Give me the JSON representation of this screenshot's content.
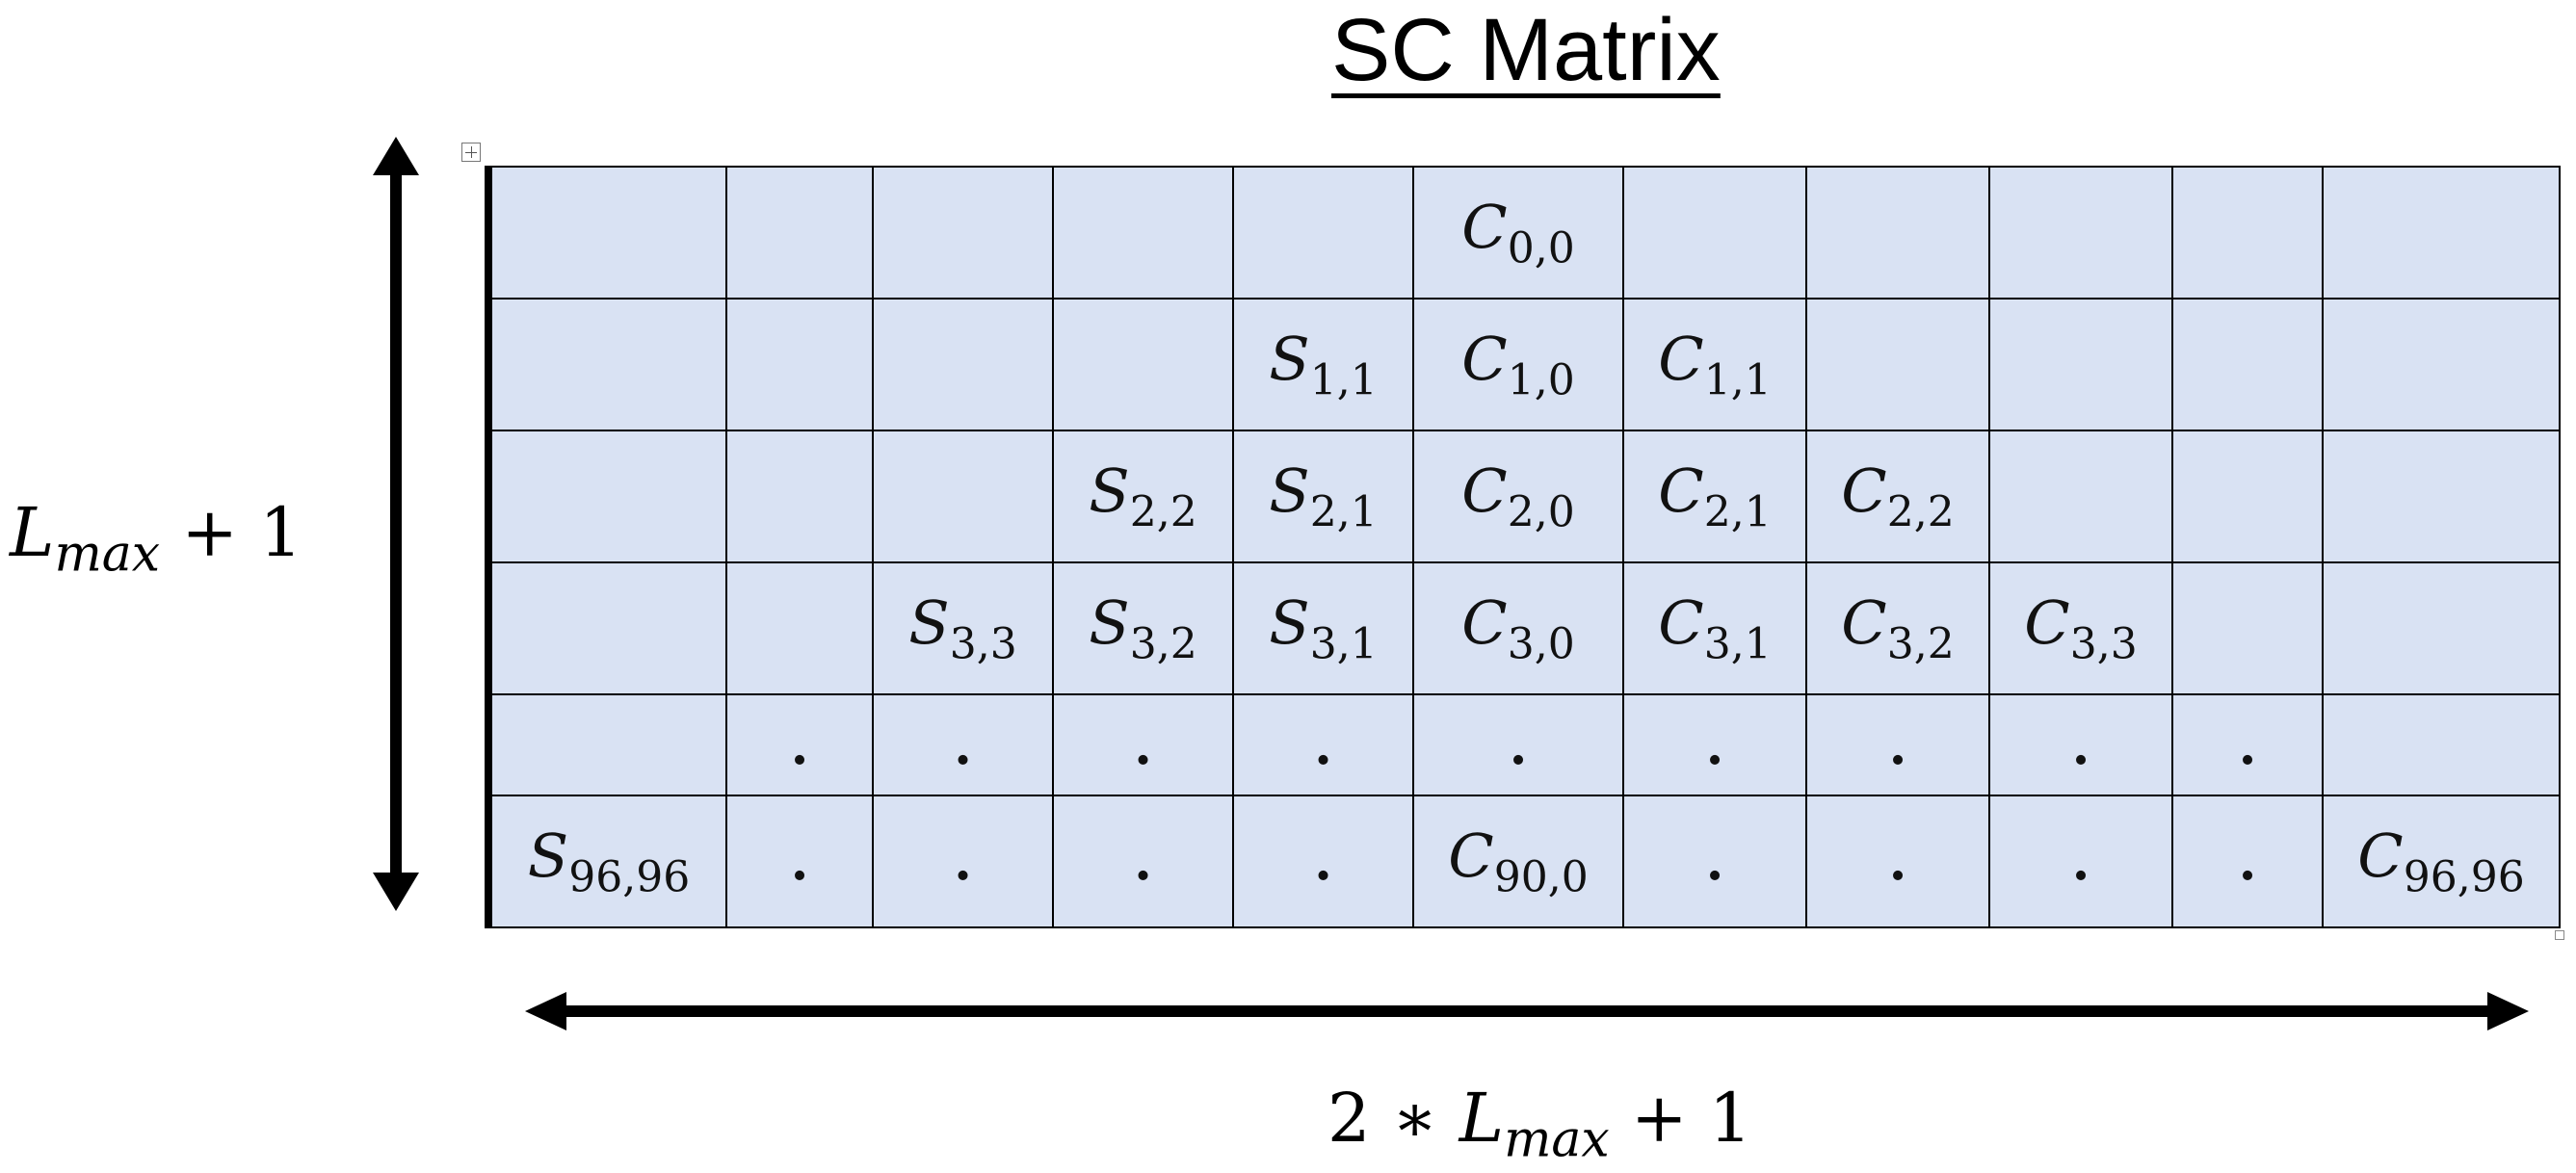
{
  "title": "SC Matrix",
  "vertical_label": {
    "base": "L",
    "sub": "max",
    "suffix": "+ 1"
  },
  "horizontal_label": {
    "prefix": "2 ∗",
    "base": "L",
    "sub": "max",
    "suffix": "+ 1"
  },
  "icons": {
    "move_handle": "table-move-handle-icon",
    "resize_handle": "table-resize-handle-icon",
    "vertical_arrow": "double-arrow-vertical-icon",
    "horizontal_arrow": "double-arrow-horizontal-icon"
  },
  "colors": {
    "cell_fill": "#d9e2f3",
    "border": "#000000"
  },
  "matrix": {
    "rows": [
      [
        {
          "b": "",
          "s": ""
        },
        {
          "b": "",
          "s": ""
        },
        {
          "b": "",
          "s": ""
        },
        {
          "b": "",
          "s": ""
        },
        {
          "b": "",
          "s": ""
        },
        {
          "b": "C",
          "s": "0,0"
        },
        {
          "b": "",
          "s": ""
        },
        {
          "b": "",
          "s": ""
        },
        {
          "b": "",
          "s": ""
        },
        {
          "b": "",
          "s": ""
        },
        {
          "b": "",
          "s": ""
        }
      ],
      [
        {
          "b": "",
          "s": ""
        },
        {
          "b": "",
          "s": ""
        },
        {
          "b": "",
          "s": ""
        },
        {
          "b": "",
          "s": ""
        },
        {
          "b": "S",
          "s": "1,1"
        },
        {
          "b": "C",
          "s": "1,0"
        },
        {
          "b": "C",
          "s": "1,1"
        },
        {
          "b": "",
          "s": ""
        },
        {
          "b": "",
          "s": ""
        },
        {
          "b": "",
          "s": ""
        },
        {
          "b": "",
          "s": ""
        }
      ],
      [
        {
          "b": "",
          "s": ""
        },
        {
          "b": "",
          "s": ""
        },
        {
          "b": "",
          "s": ""
        },
        {
          "b": "S",
          "s": "2,2"
        },
        {
          "b": "S",
          "s": "2,1"
        },
        {
          "b": "C",
          "s": "2,0"
        },
        {
          "b": "C",
          "s": "2,1"
        },
        {
          "b": "C",
          "s": "2,2"
        },
        {
          "b": "",
          "s": ""
        },
        {
          "b": "",
          "s": ""
        },
        {
          "b": "",
          "s": ""
        }
      ],
      [
        {
          "b": "",
          "s": ""
        },
        {
          "b": "",
          "s": ""
        },
        {
          "b": "S",
          "s": "3,3"
        },
        {
          "b": "S",
          "s": "3,2"
        },
        {
          "b": "S",
          "s": "3,1"
        },
        {
          "b": "C",
          "s": "3,0"
        },
        {
          "b": "C",
          "s": "3,1"
        },
        {
          "b": "C",
          "s": "3,2"
        },
        {
          "b": "C",
          "s": "3,3"
        },
        {
          "b": "",
          "s": ""
        },
        {
          "b": "",
          "s": ""
        }
      ],
      [
        {
          "b": "",
          "s": ""
        },
        {
          "b": ".",
          "s": ""
        },
        {
          "b": ".",
          "s": ""
        },
        {
          "b": ".",
          "s": ""
        },
        {
          "b": ".",
          "s": ""
        },
        {
          "b": ".",
          "s": ""
        },
        {
          "b": ".",
          "s": ""
        },
        {
          "b": ".",
          "s": ""
        },
        {
          "b": ".",
          "s": ""
        },
        {
          "b": ".",
          "s": ""
        },
        {
          "b": "",
          "s": ""
        }
      ],
      [
        {
          "b": "S",
          "s": "96,96"
        },
        {
          "b": ".",
          "s": ""
        },
        {
          "b": ".",
          "s": ""
        },
        {
          "b": ".",
          "s": ""
        },
        {
          "b": ".",
          "s": ""
        },
        {
          "b": "C",
          "s": "90,0"
        },
        {
          "b": ".",
          "s": ""
        },
        {
          "b": ".",
          "s": ""
        },
        {
          "b": ".",
          "s": ""
        },
        {
          "b": ".",
          "s": ""
        },
        {
          "b": "C",
          "s": "96,96"
        }
      ]
    ]
  }
}
